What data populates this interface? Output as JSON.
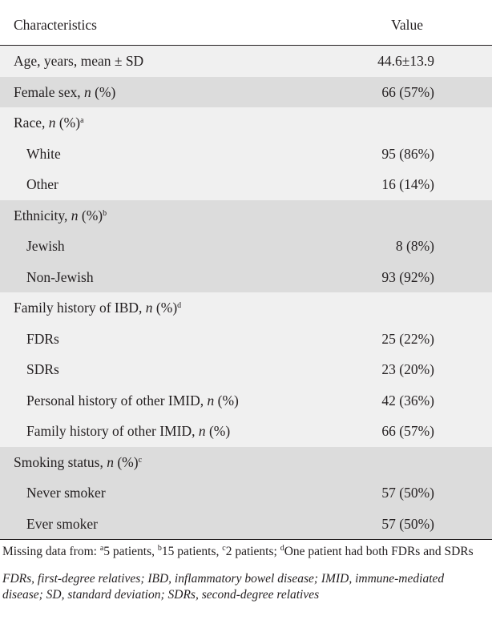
{
  "header": {
    "characteristics": "Characteristics",
    "value": "Value"
  },
  "rows": [
    {
      "label": "Age, years, mean ± SD",
      "italic": "",
      "suffix": "",
      "sup": "",
      "value": "44.6±13.9"
    },
    {
      "label": "Female sex, ",
      "italic": "n",
      "suffix": " (%)",
      "sup": "",
      "value": "66 (57%)"
    },
    {
      "label": "Race, ",
      "italic": "n",
      "suffix": " (%)",
      "sup": "a",
      "value": ""
    },
    {
      "label": "White",
      "italic": "",
      "suffix": "",
      "sup": "",
      "value": "95 (86%)"
    },
    {
      "label": "Other",
      "italic": "",
      "suffix": "",
      "sup": "",
      "value": "16 (14%)"
    },
    {
      "label": "Ethnicity, ",
      "italic": "n",
      "suffix": " (%)",
      "sup": "b",
      "value": ""
    },
    {
      "label": "Jewish",
      "italic": "",
      "suffix": "",
      "sup": "",
      "value": "8 (8%)"
    },
    {
      "label": "Non-Jewish",
      "italic": "",
      "suffix": "",
      "sup": "",
      "value": "93 (92%)"
    },
    {
      "label": "Family history of IBD, ",
      "italic": "n",
      "suffix": " (%)",
      "sup": "d",
      "value": ""
    },
    {
      "label": "FDRs",
      "italic": "",
      "suffix": "",
      "sup": "",
      "value": "25 (22%)"
    },
    {
      "label": "SDRs",
      "italic": "",
      "suffix": "",
      "sup": "",
      "value": "23 (20%)"
    },
    {
      "label": "Personal history of other IMID, ",
      "italic": "n",
      "suffix": " (%)",
      "sup": "",
      "value": "42 (36%)"
    },
    {
      "label": "Family history of other IMID, ",
      "italic": "n",
      "suffix": " (%)",
      "sup": "",
      "value": "66 (57%)"
    },
    {
      "label": "Smoking status, ",
      "italic": "n",
      "suffix": " (%)",
      "sup": "c",
      "value": ""
    },
    {
      "label": "Never smoker",
      "italic": "",
      "suffix": "",
      "sup": "",
      "value": "57 (50%)"
    },
    {
      "label": "Ever smoker",
      "italic": "",
      "suffix": "",
      "sup": "",
      "value": "57 (50%)"
    }
  ],
  "footnotes": {
    "missing_prefix": "Missing data from: ",
    "sup_a": "a",
    "text_a": "5 patients, ",
    "sup_b": "b",
    "text_b": "15 patients, ",
    "sup_c": "c",
    "text_c": "2 patients; ",
    "sup_d": "d",
    "text_d": "One patient had both FDRs and SDRs",
    "abbreviations": "FDRs, first-degree relatives; IBD, inflammatory bowel disease; IMID, immune-mediated disease; SD, standard deviation; SDRs, second-degree relatives"
  }
}
